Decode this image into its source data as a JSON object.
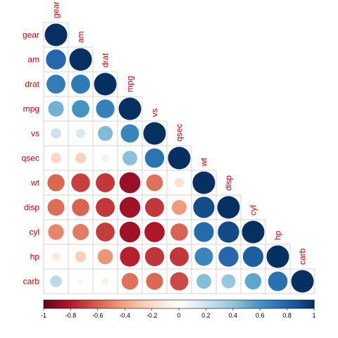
{
  "chart_data": {
    "type": "heatmap",
    "variables": [
      "gear",
      "am",
      "drat",
      "mpg",
      "vs",
      "qsec",
      "wt",
      "disp",
      "cyl",
      "hp",
      "carb"
    ],
    "matrix_shape": "lower-triangular",
    "glyph": "circle",
    "values": [
      [
        1
      ],
      [
        0.79,
        1
      ],
      [
        0.7,
        0.71,
        1
      ],
      [
        0.48,
        0.6,
        0.68,
        1
      ],
      [
        0.21,
        0.17,
        0.44,
        0.66,
        1
      ],
      [
        -0.21,
        -0.23,
        0.09,
        0.42,
        0.74,
        1
      ],
      [
        -0.58,
        -0.69,
        -0.71,
        -0.87,
        -0.55,
        -0.17,
        1
      ],
      [
        -0.56,
        -0.59,
        -0.71,
        -0.85,
        -0.71,
        -0.43,
        0.89,
        1
      ],
      [
        -0.49,
        -0.52,
        -0.7,
        -0.85,
        -0.81,
        -0.59,
        0.78,
        0.9,
        1
      ],
      [
        -0.13,
        -0.24,
        -0.45,
        -0.78,
        -0.72,
        -0.71,
        0.66,
        0.79,
        0.83,
        1
      ],
      [
        0.27,
        0.06,
        -0.09,
        -0.55,
        -0.57,
        -0.66,
        0.43,
        0.39,
        0.53,
        0.75,
        1
      ]
    ],
    "colorbar": {
      "min": -1,
      "max": 1,
      "ticks": [
        "-1",
        "-0.8",
        "-0.6",
        "-0.4",
        "-0.2",
        "0",
        "0.2",
        "0.4",
        "0.6",
        "0.8",
        "1"
      ]
    },
    "colors": {
      "negative_end": "#67001f",
      "positive_end": "#053061",
      "midpoint": "#ffffff",
      "label_color": "#cc0000"
    }
  }
}
